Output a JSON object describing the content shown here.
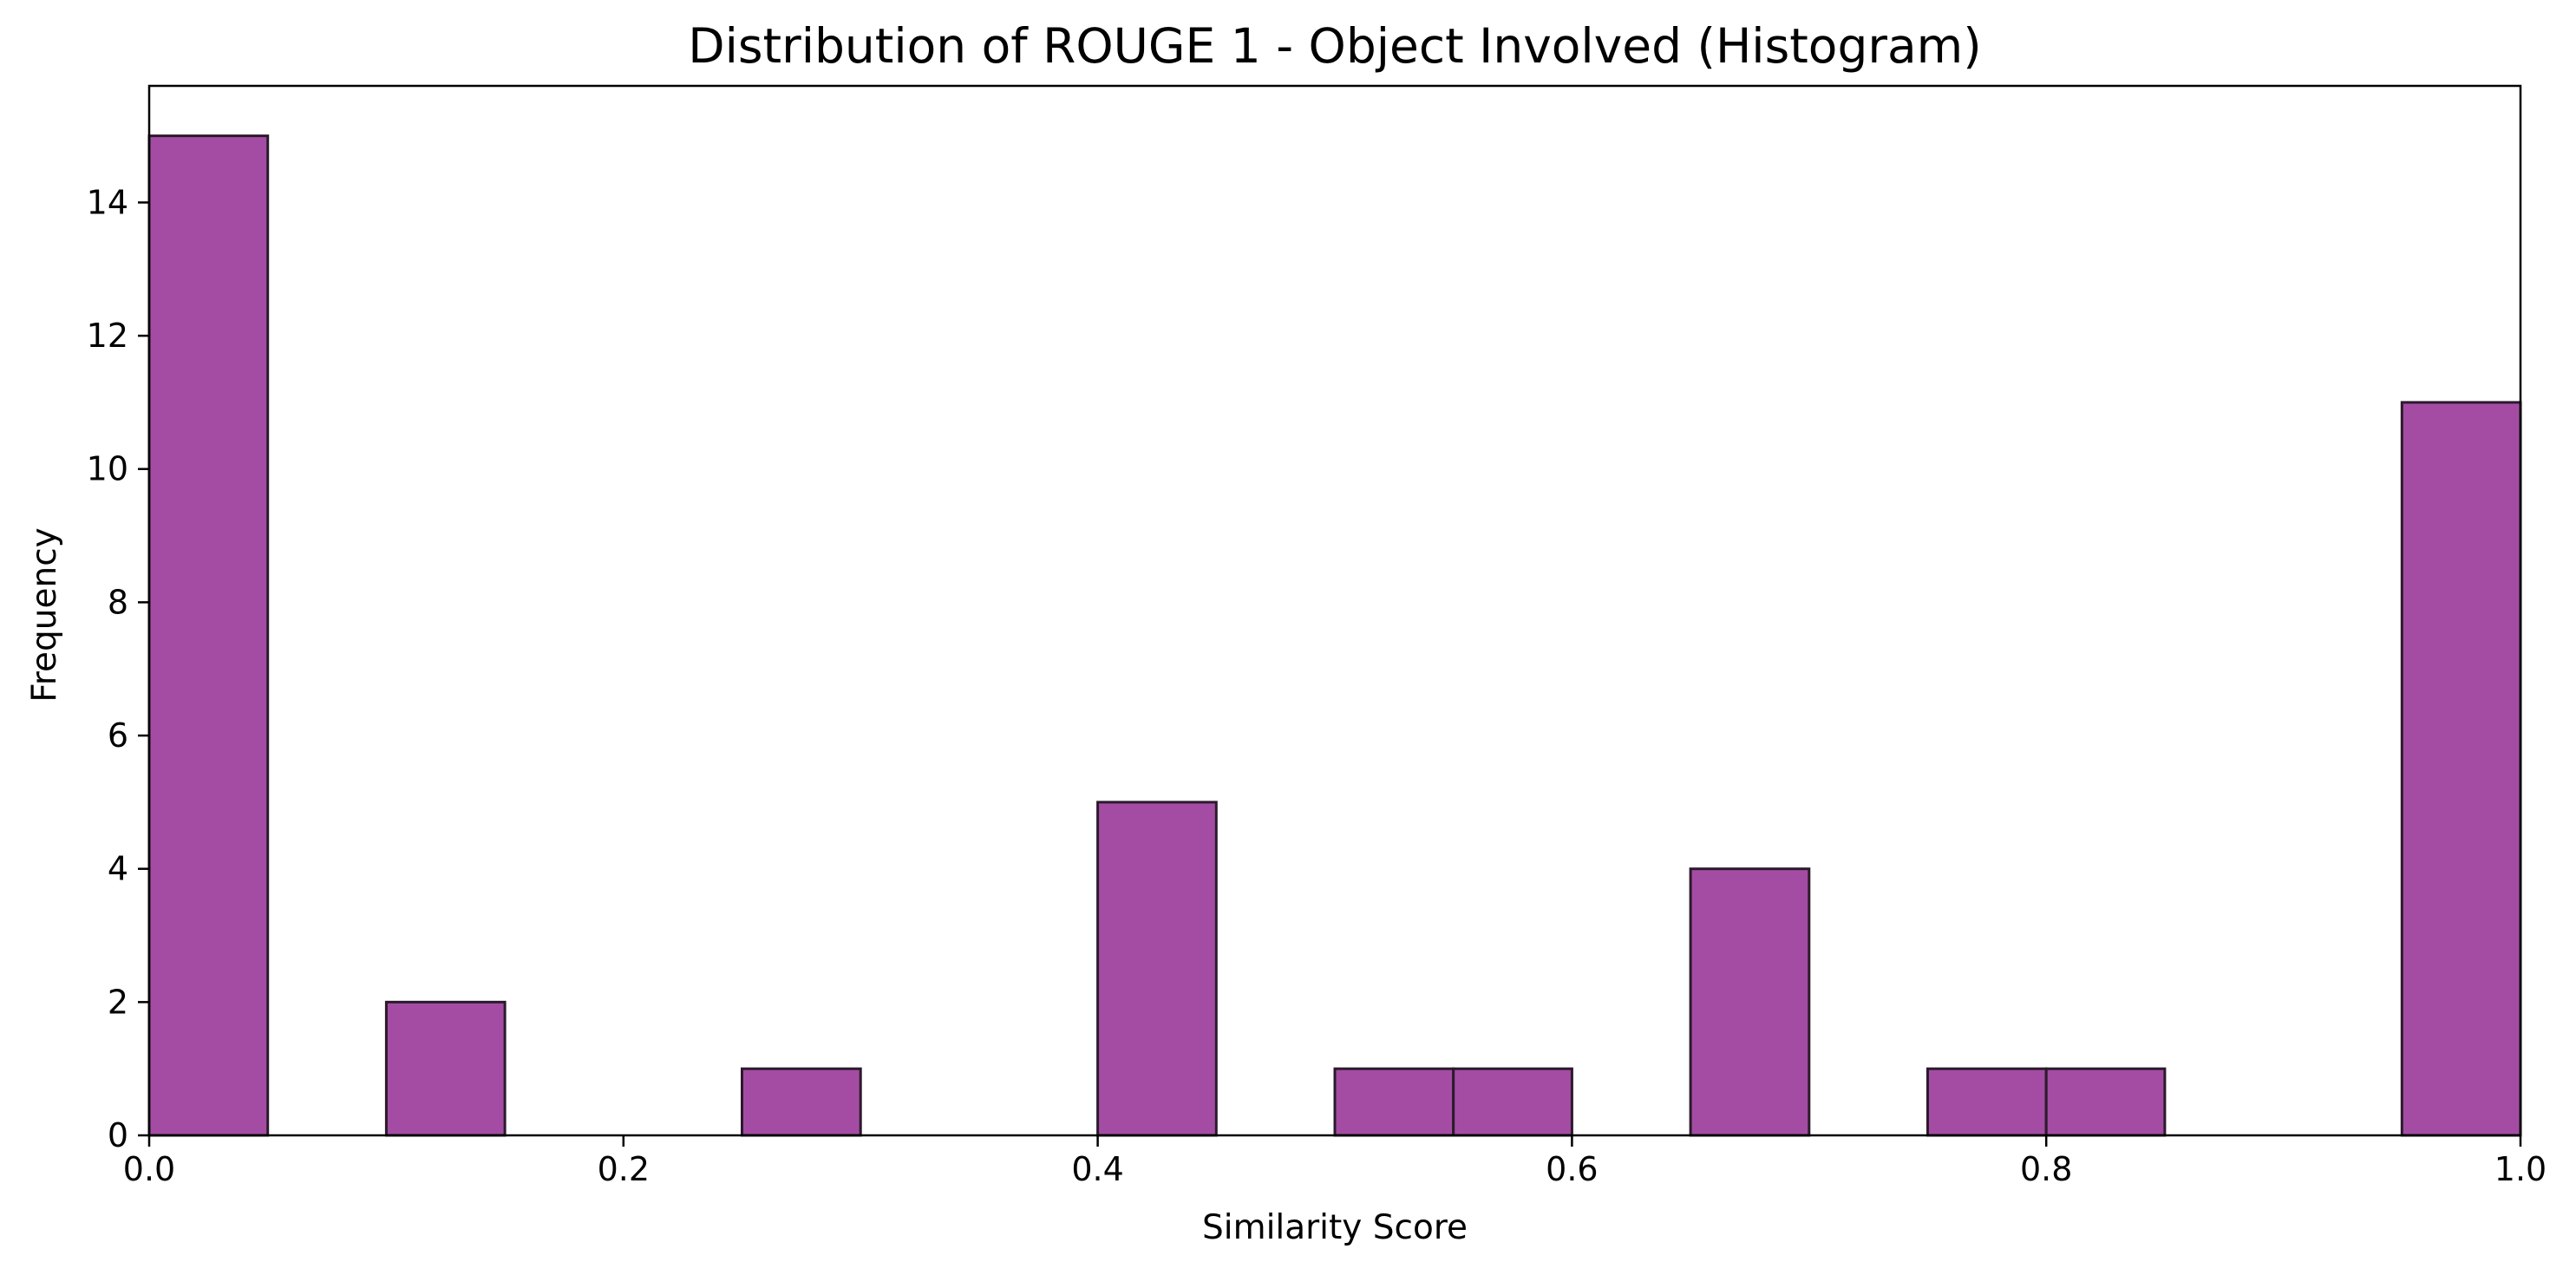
{
  "chart_data": {
    "type": "bar",
    "title": "Distribution of ROUGE 1 - Object Involved (Histogram)",
    "xlabel": "Similarity Score",
    "ylabel": "Frequency",
    "xlim": [
      0.0,
      1.0
    ],
    "ylim": [
      0,
      15.75
    ],
    "x_ticks": [
      "0.0",
      "0.2",
      "0.4",
      "0.6",
      "0.8",
      "1.0"
    ],
    "x_tick_values": [
      0.0,
      0.2,
      0.4,
      0.6,
      0.8,
      1.0
    ],
    "y_ticks": [
      "0",
      "2",
      "4",
      "6",
      "8",
      "10",
      "12",
      "14"
    ],
    "y_tick_values": [
      0,
      2,
      4,
      6,
      8,
      10,
      12,
      14
    ],
    "bin_edges": [
      0.0,
      0.05,
      0.1,
      0.15,
      0.2,
      0.25,
      0.3,
      0.35,
      0.4,
      0.45,
      0.5,
      0.55,
      0.6,
      0.65,
      0.7,
      0.75,
      0.8,
      0.85,
      0.9,
      0.95,
      1.0
    ],
    "values": [
      15,
      0,
      2,
      0,
      0,
      1,
      0,
      0,
      5,
      0,
      1,
      1,
      0,
      4,
      0,
      1,
      1,
      0,
      0,
      11
    ],
    "grid": false,
    "colors": {
      "bar_fill": "#a44ca4",
      "bar_edge": "#2b1a2b"
    }
  }
}
